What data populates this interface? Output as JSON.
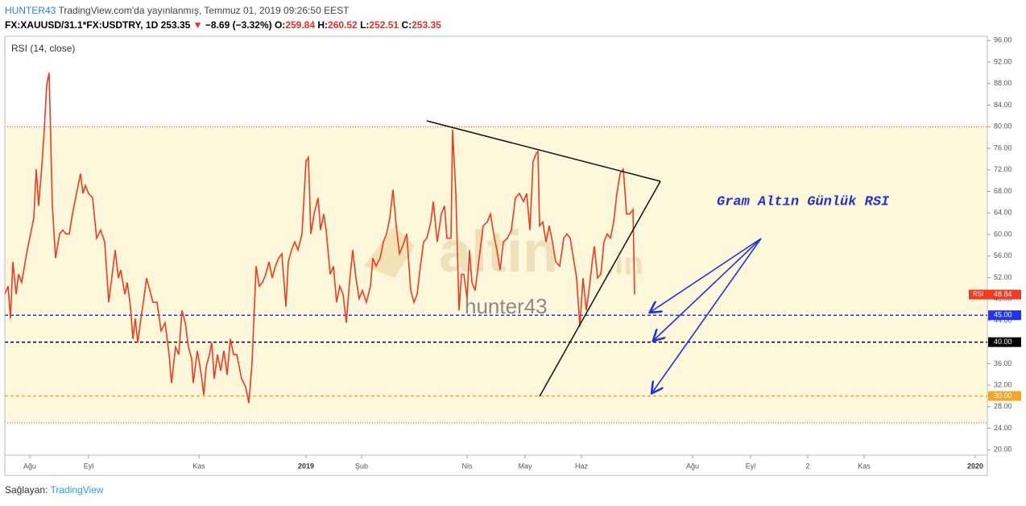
{
  "header": {
    "author": "HUNTER43",
    "published": "TradingView.com'da yayınlanmış, Temmuz 01, 2019 09:26:50 EEST",
    "symbol": "FX:XAUUSD/31.1*FX:USDTRY, 1D",
    "price": "253.35",
    "arrow": "▼",
    "change": "−8.69 (−3.32%)",
    "open_label": "O:",
    "open": "259.84",
    "high_label": "H:",
    "high": "260.52",
    "low_label": "L:",
    "low": "252.51",
    "close_label": "C:",
    "close": "253.35"
  },
  "chart_data": {
    "type": "line",
    "title": "RSI (14, close)",
    "x": [
      0,
      4,
      7,
      10,
      14,
      17,
      21,
      27,
      32,
      36,
      39,
      42,
      46,
      49,
      52,
      55,
      59,
      63,
      68,
      72,
      76,
      80,
      84,
      89,
      94,
      97,
      100,
      104,
      109,
      114,
      119,
      124,
      129,
      134,
      137,
      141,
      144,
      149,
      152,
      156,
      159,
      162,
      165,
      169,
      172,
      176,
      180,
      184,
      189,
      194,
      199,
      204,
      207,
      212,
      216,
      220,
      224,
      228,
      232,
      234,
      239,
      244,
      247,
      250,
      254,
      257,
      260,
      264,
      268,
      272,
      276,
      280,
      284,
      288,
      294,
      299,
      303,
      307,
      312,
      316,
      320,
      324,
      328,
      332,
      336,
      340,
      344,
      349,
      352,
      356,
      360,
      364,
      369,
      374,
      377,
      380,
      384,
      389,
      392,
      396,
      399,
      404,
      408,
      412,
      416,
      420,
      424,
      428,
      432,
      436,
      440,
      444,
      449,
      454,
      457,
      461,
      466,
      470,
      474,
      478,
      482,
      486,
      490,
      494,
      499,
      504,
      508,
      512,
      516,
      520,
      524,
      529,
      532,
      537,
      542,
      546,
      549,
      554,
      556,
      560,
      564,
      567,
      570,
      574,
      577,
      580,
      584,
      589,
      594,
      599,
      603,
      607,
      611,
      615,
      619,
      624,
      629,
      634,
      639,
      644,
      648,
      652,
      656,
      660,
      662,
      664,
      668,
      672,
      676,
      680,
      684,
      689,
      694,
      698,
      702,
      706,
      710,
      714,
      718,
      722,
      726,
      730,
      732,
      736,
      740,
      744,
      748,
      752,
      756,
      760,
      764,
      768,
      772,
      776,
      780,
      782
    ],
    "series": [
      {
        "name": "RSI",
        "color": "#f23a20",
        "values": [
          48.9,
          50.4,
          44.4,
          54.9,
          48.9,
          52.6,
          51.1,
          56.4,
          60.1,
          63.1,
          72.1,
          65.3,
          72.8,
          79.5,
          87.8,
          90.0,
          65.3,
          55.6,
          60.1,
          60.8,
          60.1,
          60.1,
          63.8,
          67.6,
          71.3,
          67.6,
          69.1,
          67.6,
          66.8,
          59.3,
          60.8,
          58.6,
          47.4,
          53.4,
          57.1,
          51.9,
          53.4,
          48.9,
          51.1,
          46.6,
          40.6,
          44.4,
          39.9,
          44.4,
          47.4,
          51.9,
          49.6,
          47.4,
          47.4,
          42.1,
          43.6,
          37.7,
          32.4,
          39.1,
          37.7,
          45.9,
          43.6,
          39.1,
          36.9,
          32.4,
          38.4,
          33.9,
          30.2,
          35.4,
          37.7,
          39.9,
          33.2,
          37.7,
          34.7,
          38.4,
          33.9,
          40.6,
          37.7,
          37.7,
          33.2,
          31.7,
          28.7,
          36.2,
          54.1,
          50.4,
          51.1,
          52.6,
          54.9,
          51.9,
          54.1,
          55.6,
          56.4,
          46.6,
          54.9,
          57.1,
          58.6,
          57.1,
          60.1,
          73.6,
          74.3,
          60.1,
          63.8,
          66.8,
          60.8,
          63.8,
          60.8,
          52.6,
          54.1,
          47.4,
          50.4,
          48.9,
          43.6,
          51.1,
          57.1,
          51.9,
          48.1,
          49.6,
          47.4,
          50.4,
          55.6,
          54.1,
          55.6,
          58.6,
          60.1,
          63.1,
          68.3,
          61.6,
          56.4,
          57.8,
          60.1,
          49.6,
          47.4,
          48.9,
          54.1,
          58.6,
          59.3,
          62.3,
          66.1,
          58.6,
          63.8,
          65.3,
          59.3,
          59.3,
          79.5,
          67.6,
          45.9,
          52.6,
          52.6,
          48.1,
          57.1,
          51.1,
          49.6,
          55.6,
          61.6,
          62.3,
          63.8,
          60.1,
          57.1,
          53.4,
          58.6,
          59.3,
          60.8,
          66.8,
          67.6,
          66.1,
          67.6,
          60.8,
          73.6,
          75.1,
          75.4,
          61.6,
          62.3,
          58.6,
          61.6,
          58.6,
          54.9,
          54.1,
          59.3,
          60.1,
          59.3,
          55.6,
          51.9,
          42.9,
          51.9,
          45.9,
          50.4,
          55.6,
          57.8,
          51.9,
          52.6,
          58.6,
          60.1,
          59.3,
          62.3,
          67.6,
          71.3,
          72.1,
          63.8,
          63.8,
          64.6,
          48.84
        ]
      }
    ],
    "xlim": [
      0,
      1220
    ],
    "ylim": [
      19,
      96.8
    ],
    "xticks": [
      {
        "value": 31,
        "label": "Ağu"
      },
      {
        "value": 104,
        "label": "Eyl"
      },
      {
        "value": 241,
        "label": "Kas"
      },
      {
        "value": 374,
        "label": "2019"
      },
      {
        "value": 443,
        "label": "Şub"
      },
      {
        "value": 574,
        "label": "Nis"
      },
      {
        "value": 646,
        "label": "May"
      },
      {
        "value": 716,
        "label": "Haz"
      },
      {
        "value": 854,
        "label": "Ağu"
      },
      {
        "value": 926,
        "label": "Eyl"
      },
      {
        "value": 997,
        "label": "2"
      },
      {
        "value": 1067,
        "label": "Kas"
      },
      {
        "value": 1205,
        "label": "2020"
      }
    ],
    "yticks": [
      {
        "value": 20,
        "label": "20.00"
      },
      {
        "value": 24,
        "label": "24.00"
      },
      {
        "value": 28,
        "label": "28.00"
      },
      {
        "value": 32,
        "label": "32.00"
      },
      {
        "value": 36,
        "label": "36.00"
      },
      {
        "value": 40,
        "label": "40.00"
      },
      {
        "value": 44,
        "label": "44.00"
      },
      {
        "value": 48,
        "label": "48.00"
      },
      {
        "value": 52,
        "label": "52.00"
      },
      {
        "value": 56,
        "label": "56.00"
      },
      {
        "value": 60,
        "label": "60.00"
      },
      {
        "value": 64,
        "label": "64.00"
      },
      {
        "value": 68,
        "label": "68.00"
      },
      {
        "value": 72,
        "label": "72.00"
      },
      {
        "value": 76,
        "label": "76.00"
      },
      {
        "value": 80,
        "label": "80.00"
      },
      {
        "value": 84,
        "label": "84.00"
      },
      {
        "value": 88,
        "label": "88.00"
      },
      {
        "value": 92,
        "label": "92.00"
      },
      {
        "value": 96,
        "label": "96.00"
      }
    ],
    "band": {
      "range": [
        25,
        80
      ],
      "color": "#fdf8dc"
    },
    "levels": [
      {
        "value": 80,
        "color": "#e0443a"
      },
      {
        "value": 45,
        "label": "45.00",
        "color": "#2233ee"
      },
      {
        "value": 40,
        "label": "40.00",
        "color": "#000000"
      },
      {
        "value": 30,
        "label": "30.00",
        "color": "#f5a623"
      },
      {
        "value": 25,
        "color": "#e0443a"
      }
    ],
    "annotation": "Gram Altın Günlük RSI",
    "watermark": {
      "brand": "altin",
      "suffix": ".in",
      "user": "hunter43"
    },
    "grid": false
  },
  "footer": {
    "label": "Sağlayan:",
    "brand": "TradingView"
  }
}
